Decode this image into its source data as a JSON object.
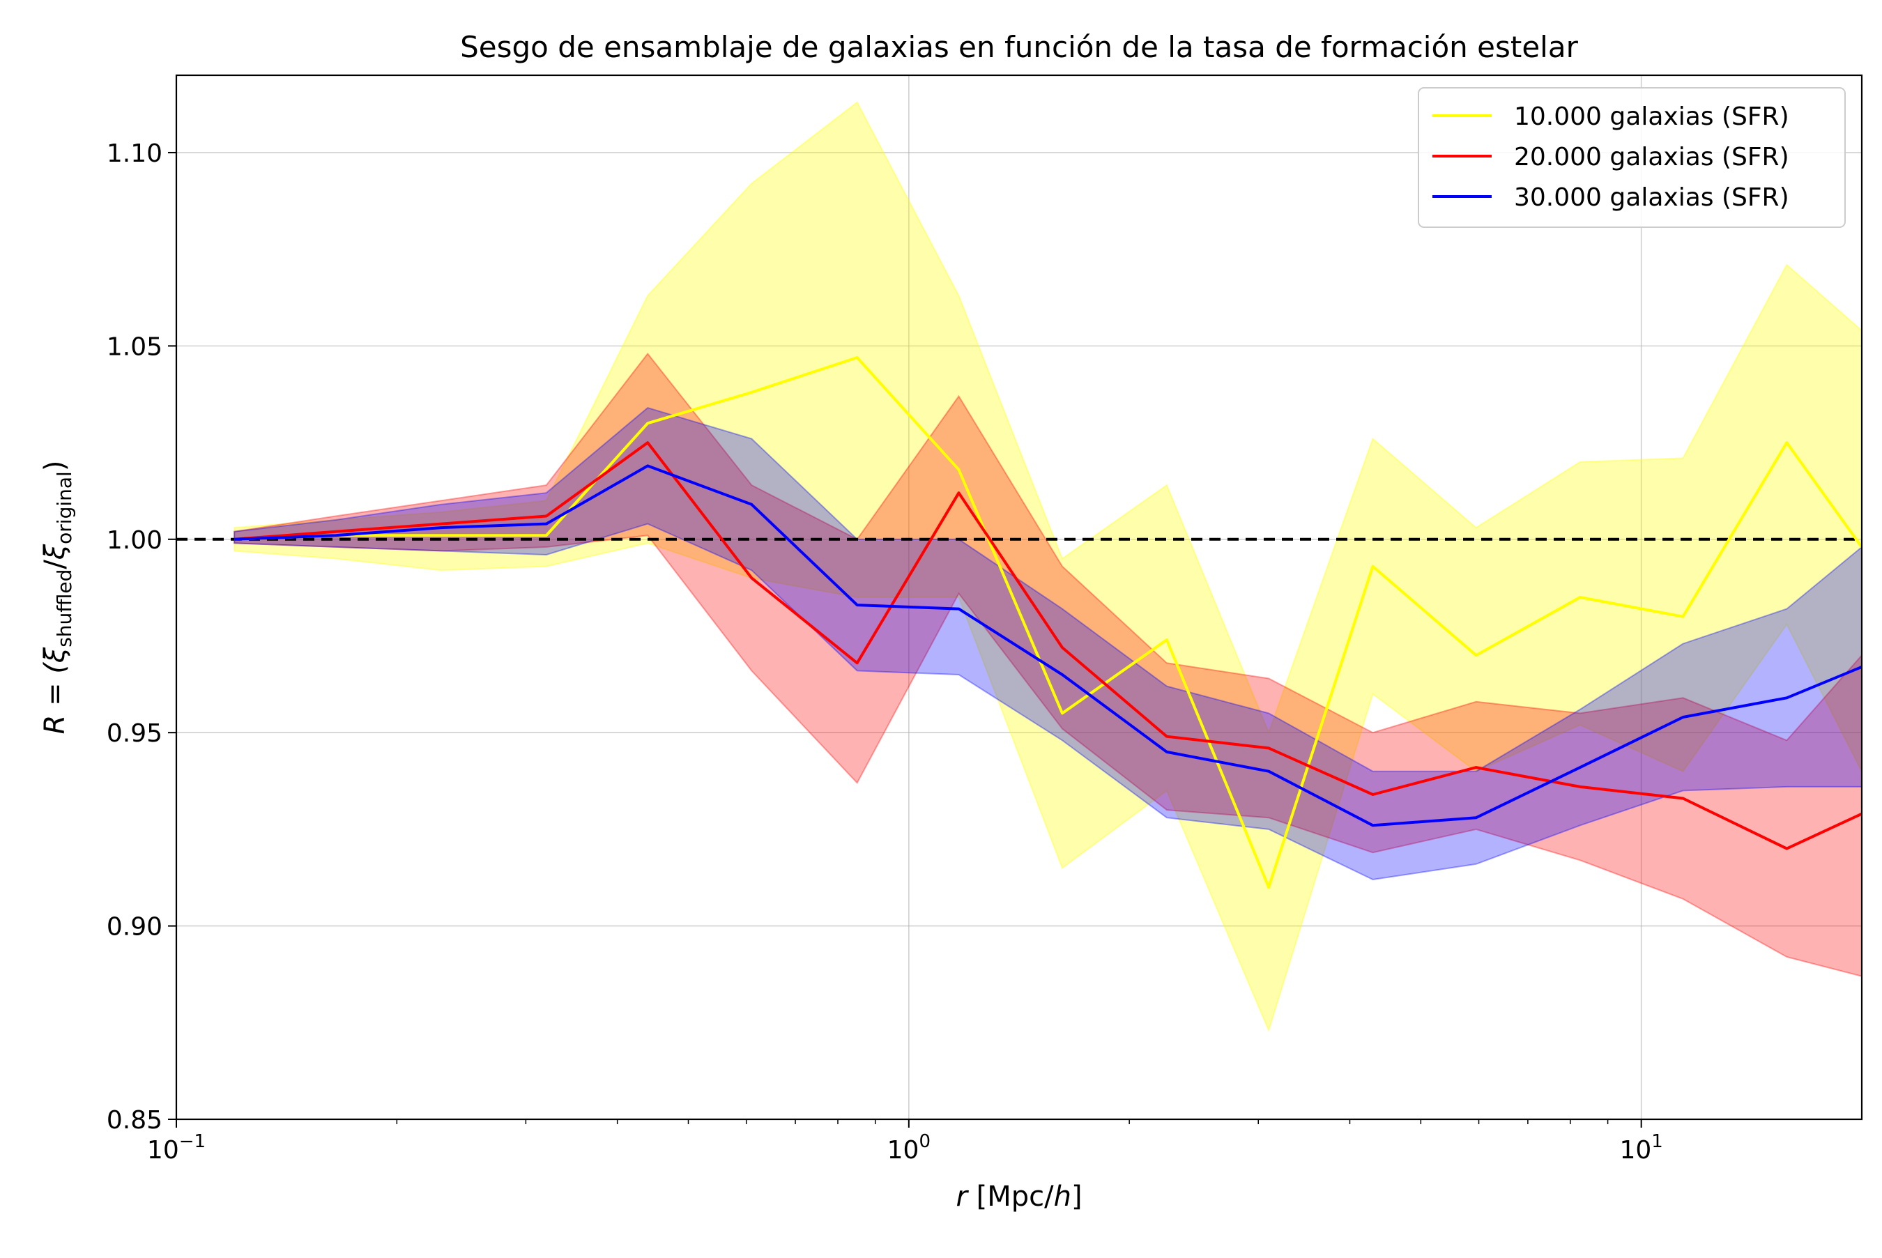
{
  "chart_data": {
    "type": "line",
    "title": "Sesgo de ensamblaje de galaxias en función de la tasa de formación estelar",
    "xlabel": {
      "var": "r",
      "unit": " [Mpc/",
      "unit_var": "h",
      "close": "]"
    },
    "ylabel": {
      "prefix": "R = (",
      "xi": "ξ",
      "sub1": "shuffled",
      "slash": "/",
      "sub2": "original",
      "close": ")"
    },
    "xscale": "log",
    "xlim": [
      0.1,
      20
    ],
    "ylim": [
      0.85,
      1.12
    ],
    "grid": true,
    "legend_position": "top-right",
    "x_ticks": [
      {
        "value": 0.1,
        "base": "10",
        "exp": "−1"
      },
      {
        "value": 1,
        "base": "10",
        "exp": "0"
      },
      {
        "value": 10,
        "base": "10",
        "exp": "1"
      }
    ],
    "y_ticks": [
      {
        "value": 0.85,
        "label": "0.85"
      },
      {
        "value": 0.9,
        "label": "0.90"
      },
      {
        "value": 0.95,
        "label": "0.95"
      },
      {
        "value": 1.0,
        "label": "1.00"
      },
      {
        "value": 1.05,
        "label": "1.05"
      },
      {
        "value": 1.1,
        "label": "1.10"
      }
    ],
    "reference_line": {
      "y": 1.0,
      "style": "dashed",
      "color": "#000000"
    },
    "x": [
      0.12,
      0.165,
      0.23,
      0.32,
      0.44,
      0.61,
      0.85,
      1.17,
      1.62,
      2.25,
      3.1,
      4.3,
      5.95,
      8.25,
      11.4,
      15.8,
      20
    ],
    "series": [
      {
        "name": "10.000 galaxias (SFR)",
        "color": "#ffff00",
        "fill_color": "#ffff00",
        "fill_opacity": 0.33,
        "values": [
          1.0,
          1.001,
          1.001,
          1.001,
          1.03,
          1.038,
          1.047,
          1.018,
          0.955,
          0.974,
          0.91,
          0.993,
          0.97,
          0.985,
          0.98,
          1.025,
          0.998
        ],
        "lower": [
          0.997,
          0.995,
          0.992,
          0.993,
          0.999,
          0.99,
          0.985,
          0.985,
          0.915,
          0.935,
          0.873,
          0.96,
          0.94,
          0.952,
          0.94,
          0.978,
          0.94
        ],
        "upper": [
          1.003,
          1.005,
          1.007,
          1.01,
          1.063,
          1.092,
          1.113,
          1.063,
          0.995,
          1.014,
          0.95,
          1.026,
          1.003,
          1.02,
          1.021,
          1.071,
          1.054
        ]
      },
      {
        "name": "20.000 galaxias (SFR)",
        "color": "#ff0000",
        "fill_color": "#ff0000",
        "fill_opacity": 0.3,
        "values": [
          1.0,
          1.002,
          1.004,
          1.006,
          1.025,
          0.99,
          0.968,
          1.012,
          0.972,
          0.949,
          0.946,
          0.934,
          0.941,
          0.936,
          0.933,
          0.92,
          0.929
        ],
        "lower": [
          0.999,
          0.998,
          0.997,
          0.998,
          1.001,
          0.966,
          0.937,
          0.986,
          0.951,
          0.93,
          0.928,
          0.919,
          0.925,
          0.917,
          0.907,
          0.892,
          0.887
        ],
        "upper": [
          1.002,
          1.006,
          1.01,
          1.014,
          1.048,
          1.014,
          1.0,
          1.037,
          0.993,
          0.968,
          0.964,
          0.95,
          0.958,
          0.955,
          0.959,
          0.948,
          0.97
        ]
      },
      {
        "name": "30.000 galaxias (SFR)",
        "color": "#0000ff",
        "fill_color": "#0000ff",
        "fill_opacity": 0.3,
        "values": [
          1.0,
          1.001,
          1.003,
          1.004,
          1.019,
          1.009,
          0.983,
          0.982,
          0.965,
          0.945,
          0.94,
          0.926,
          0.928,
          0.941,
          0.954,
          0.959,
          0.967
        ],
        "lower": [
          0.999,
          0.998,
          0.997,
          0.996,
          1.004,
          0.992,
          0.966,
          0.965,
          0.948,
          0.928,
          0.925,
          0.912,
          0.916,
          0.926,
          0.935,
          0.936,
          0.936
        ],
        "upper": [
          1.002,
          1.005,
          1.009,
          1.012,
          1.034,
          1.026,
          1.0,
          1.0,
          0.982,
          0.962,
          0.955,
          0.94,
          0.94,
          0.956,
          0.973,
          0.982,
          0.998
        ]
      }
    ]
  }
}
